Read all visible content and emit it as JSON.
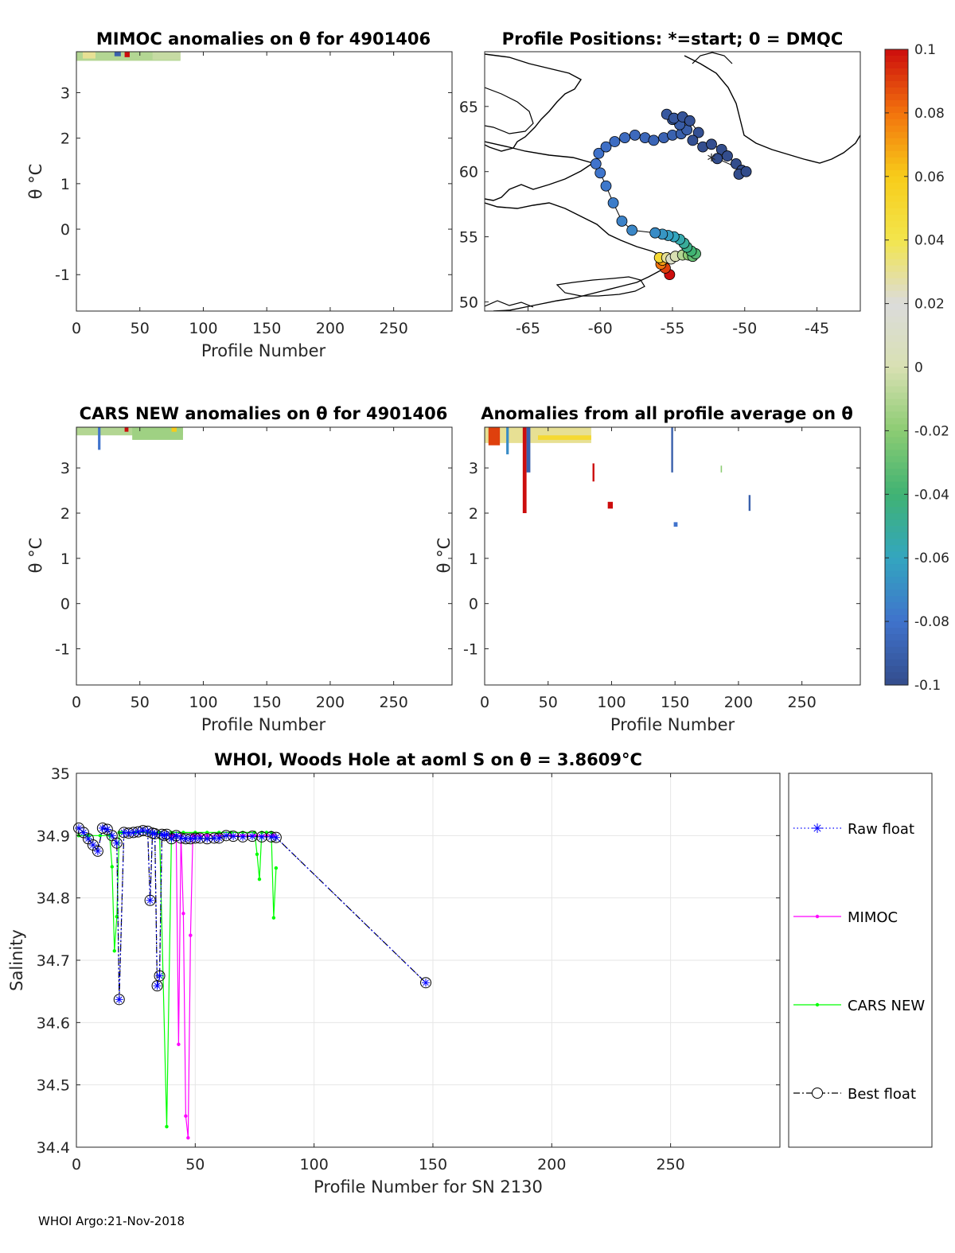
{
  "footer": "WHOI Argo:21-Nov-2018",
  "colors": {
    "raw_float": "#0000ff",
    "mimoc": "#ff00ff",
    "cars_new": "#00ff00",
    "best_float": "#000000",
    "grid": "#e6e6e6",
    "coast": "#000000"
  },
  "chart_data": [
    {
      "id": "mimoc",
      "type": "heatmap",
      "title": "MIMOC anomalies on θ  for 4901406",
      "xlabel": "Profile Number",
      "ylabel": "θ °C",
      "xlim": [
        0,
        296
      ],
      "ylim": [
        -1.8,
        3.9
      ],
      "xticks": [
        0,
        50,
        100,
        150,
        200,
        250
      ],
      "yticks": [
        -1,
        0,
        1,
        2,
        3
      ],
      "patches": [
        {
          "x0": 0,
          "x1": 82,
          "y0": 3.7,
          "y1": 3.9,
          "value": -0.01
        },
        {
          "x0": 5,
          "x1": 15,
          "y0": 3.75,
          "y1": 3.9,
          "value": 0.03
        },
        {
          "x0": 30,
          "x1": 35,
          "y0": 3.8,
          "y1": 3.9,
          "value": -0.09
        },
        {
          "x0": 38,
          "x1": 42,
          "y0": 3.78,
          "y1": 3.9,
          "value": 0.1
        },
        {
          "x0": 60,
          "x1": 82,
          "y0": 3.72,
          "y1": 3.9,
          "value": -0.005
        }
      ]
    },
    {
      "id": "positions",
      "type": "scatter",
      "title": "Profile Positions: *=start; 0 = DMQC",
      "xlim": [
        -68,
        -42
      ],
      "ylim": [
        49.3,
        69.2
      ],
      "xticks": [
        -65,
        -60,
        -55,
        -50,
        -45
      ],
      "yticks": [
        50,
        55,
        60,
        65
      ],
      "start": {
        "lon": -52.3,
        "lat": 60.8
      },
      "points": [
        [
          -55.2,
          52.1,
          0.1
        ],
        [
          -55.5,
          52.6,
          0.09
        ],
        [
          -55.8,
          52.9,
          0.08
        ],
        [
          -55.7,
          53.2,
          0.07
        ],
        [
          -55.9,
          53.4,
          0.05
        ],
        [
          -55.4,
          53.4,
          0.03
        ],
        [
          -55.1,
          53.3,
          0.01
        ],
        [
          -54.8,
          53.5,
          0.0
        ],
        [
          -54.3,
          53.6,
          -0.01
        ],
        [
          -53.9,
          53.6,
          -0.02
        ],
        [
          -53.6,
          53.5,
          -0.03
        ],
        [
          -53.4,
          53.7,
          -0.035
        ],
        [
          -53.7,
          53.9,
          -0.04
        ],
        [
          -54.0,
          54.2,
          -0.045
        ],
        [
          -54.2,
          54.5,
          -0.05
        ],
        [
          -54.5,
          54.8,
          -0.055
        ],
        [
          -54.9,
          55.0,
          -0.06
        ],
        [
          -55.3,
          55.1,
          -0.063
        ],
        [
          -55.7,
          55.2,
          -0.066
        ],
        [
          -56.2,
          55.3,
          -0.07
        ],
        [
          -57.8,
          55.5,
          -0.072
        ],
        [
          -58.5,
          56.2,
          -0.074
        ],
        [
          -59.1,
          57.6,
          -0.076
        ],
        [
          -59.6,
          58.9,
          -0.078
        ],
        [
          -60.0,
          59.9,
          -0.079
        ],
        [
          -60.3,
          60.6,
          -0.08
        ],
        [
          -60.1,
          61.4,
          -0.081
        ],
        [
          -59.6,
          61.9,
          -0.082
        ],
        [
          -59.0,
          62.3,
          -0.083
        ],
        [
          -58.3,
          62.6,
          -0.084
        ],
        [
          -57.6,
          62.8,
          -0.085
        ],
        [
          -56.9,
          62.6,
          -0.086
        ],
        [
          -56.3,
          62.4,
          -0.087
        ],
        [
          -55.6,
          62.6,
          -0.088
        ],
        [
          -55.0,
          62.8,
          -0.089
        ],
        [
          -54.4,
          62.9,
          -0.09
        ],
        [
          -54.0,
          63.2,
          -0.091
        ],
        [
          -54.5,
          63.6,
          -0.092
        ],
        [
          -55.0,
          64.0,
          -0.093
        ],
        [
          -55.4,
          64.4,
          -0.094
        ],
        [
          -54.9,
          64.1,
          -0.095
        ],
        [
          -54.3,
          64.2,
          -0.096
        ],
        [
          -53.8,
          63.9,
          -0.097
        ],
        [
          -53.2,
          63.0,
          -0.098
        ],
        [
          -53.6,
          62.4,
          -0.098
        ],
        [
          -52.9,
          61.9,
          -0.099
        ],
        [
          -52.3,
          62.1,
          -0.099
        ],
        [
          -51.6,
          61.7,
          -0.1
        ],
        [
          -51.2,
          61.2,
          -0.1
        ],
        [
          -50.6,
          60.6,
          -0.1
        ],
        [
          -50.2,
          60.1,
          -0.1
        ],
        [
          -50.4,
          59.8,
          -0.1
        ],
        [
          -49.9,
          60.0,
          -0.1
        ],
        [
          -51.9,
          61.0,
          -0.1
        ]
      ]
    },
    {
      "id": "cars",
      "type": "heatmap",
      "title": "CARS NEW anomalies on θ for 4901406",
      "xlabel": "Profile Number",
      "ylabel": "θ °C",
      "xlim": [
        0,
        296
      ],
      "ylim": [
        -1.8,
        3.9
      ],
      "xticks": [
        0,
        50,
        100,
        150,
        200,
        250
      ],
      "yticks": [
        -1,
        0,
        1,
        2,
        3
      ],
      "patches": [
        {
          "x0": 0,
          "x1": 84,
          "y0": 3.72,
          "y1": 3.9,
          "value": -0.01
        },
        {
          "x0": 44,
          "x1": 84,
          "y0": 3.62,
          "y1": 3.9,
          "value": -0.015
        },
        {
          "x0": 38,
          "x1": 41,
          "y0": 3.8,
          "y1": 3.9,
          "value": 0.1
        },
        {
          "x0": 17,
          "x1": 19,
          "y0": 3.4,
          "y1": 3.9,
          "value": -0.08
        },
        {
          "x0": 75,
          "x1": 79,
          "y0": 3.8,
          "y1": 3.9,
          "value": 0.06
        }
      ]
    },
    {
      "id": "allavg",
      "type": "heatmap",
      "title": "Anomalies from all profile average on θ",
      "xlabel": "Profile Number",
      "ylabel": "θ °C",
      "xlim": [
        0,
        296
      ],
      "ylim": [
        -1.8,
        3.9
      ],
      "xticks": [
        0,
        50,
        100,
        150,
        200,
        250
      ],
      "yticks": [
        -1,
        0,
        1,
        2,
        3
      ],
      "patches": [
        {
          "x0": 0,
          "x1": 84,
          "y0": 3.55,
          "y1": 3.9,
          "value": 0.03
        },
        {
          "x0": 42,
          "x1": 84,
          "y0": 3.62,
          "y1": 3.72,
          "value": 0.05
        },
        {
          "x0": 3,
          "x1": 12,
          "y0": 3.5,
          "y1": 3.9,
          "value": 0.09
        },
        {
          "x0": 17,
          "x1": 19,
          "y0": 3.3,
          "y1": 3.9,
          "value": -0.07
        },
        {
          "x0": 30,
          "x1": 33,
          "y0": 2.0,
          "y1": 3.9,
          "value": 0.1
        },
        {
          "x0": 33,
          "x1": 36,
          "y0": 2.9,
          "y1": 3.9,
          "value": -0.09
        },
        {
          "x0": 85,
          "x1": 86.5,
          "y0": 2.7,
          "y1": 3.1,
          "value": 0.1
        },
        {
          "x0": 97,
          "x1": 101,
          "y0": 2.1,
          "y1": 2.25,
          "value": 0.1
        },
        {
          "x0": 147,
          "x1": 148.5,
          "y0": 2.9,
          "y1": 3.9,
          "value": -0.09
        },
        {
          "x0": 149,
          "x1": 152,
          "y0": 1.7,
          "y1": 1.8,
          "value": -0.08
        },
        {
          "x0": 208,
          "x1": 209.5,
          "y0": 2.05,
          "y1": 2.4,
          "value": -0.09
        },
        {
          "x0": 186,
          "x1": 187,
          "y0": 2.9,
          "y1": 3.05,
          "value": -0.02
        }
      ]
    },
    {
      "id": "salinity",
      "type": "line",
      "title": "WHOI, Woods Hole at aoml S on θ = 3.8609°C",
      "xlabel": "Profile Number for SN 2130",
      "ylabel": "Salinity",
      "xlim": [
        0,
        296
      ],
      "ylim": [
        34.4,
        35.0
      ],
      "xticks": [
        0,
        50,
        100,
        150,
        200,
        250
      ],
      "yticks": [
        34.4,
        34.5,
        34.6,
        34.7,
        34.8,
        34.9,
        35
      ],
      "legend_position": "outside-right",
      "series": [
        {
          "name": "Raw float",
          "style": "dotted-star",
          "x": [
            1,
            3,
            5,
            7,
            9,
            11,
            13,
            15,
            17,
            18,
            20,
            22,
            24,
            26,
            28,
            30,
            31,
            32,
            33,
            34,
            35,
            36,
            37,
            38,
            40,
            42,
            44,
            46,
            48,
            50,
            52,
            55,
            58,
            60,
            63,
            66,
            70,
            74,
            78,
            82,
            84,
            147
          ],
          "y": [
            34.912,
            34.905,
            34.895,
            34.885,
            34.875,
            34.912,
            34.91,
            34.9,
            34.888,
            34.637,
            34.905,
            34.904,
            34.905,
            34.906,
            34.908,
            34.907,
            34.796,
            34.904,
            34.903,
            34.659,
            34.675,
            34.902,
            34.9,
            34.902,
            34.895,
            34.9,
            34.896,
            34.895,
            34.895,
            34.896,
            34.896,
            34.895,
            34.896,
            34.896,
            34.9,
            34.899,
            34.898,
            34.899,
            34.898,
            34.898,
            34.897,
            34.664
          ]
        },
        {
          "name": "MIMOC",
          "style": "solid-dot",
          "x": [
            40,
            41,
            42,
            43,
            44,
            45,
            46,
            47,
            48,
            49,
            50,
            52,
            55,
            60,
            65,
            70,
            75,
            80,
            83
          ],
          "y": [
            34.9,
            34.9,
            34.9,
            34.565,
            34.9,
            34.775,
            34.45,
            34.415,
            34.74,
            34.9,
            34.9,
            34.9,
            34.9,
            34.9,
            34.9,
            34.9,
            34.9,
            34.9,
            34.9
          ]
        },
        {
          "name": "CARS NEW",
          "style": "solid-dot",
          "x": [
            1,
            5,
            10,
            14,
            15,
            16,
            17,
            18,
            19,
            25,
            30,
            35,
            38,
            40,
            45,
            50,
            55,
            60,
            65,
            70,
            75,
            76,
            77,
            78,
            80,
            82,
            83,
            84
          ],
          "y": [
            34.9,
            34.9,
            34.9,
            34.9,
            34.85,
            34.715,
            34.77,
            34.905,
            34.905,
            34.905,
            34.905,
            34.905,
            34.433,
            34.905,
            34.905,
            34.905,
            34.905,
            34.905,
            34.905,
            34.905,
            34.905,
            34.87,
            34.83,
            34.905,
            34.905,
            34.905,
            34.768,
            34.848
          ]
        },
        {
          "name": "Best float",
          "style": "dashdot-circle",
          "x": [
            1,
            3,
            5,
            7,
            9,
            11,
            13,
            15,
            17,
            18,
            20,
            22,
            24,
            26,
            28,
            30,
            31,
            32,
            33,
            34,
            35,
            36,
            37,
            38,
            40,
            42,
            44,
            46,
            48,
            50,
            52,
            55,
            58,
            60,
            63,
            66,
            70,
            74,
            78,
            82,
            84,
            147
          ],
          "y": [
            34.912,
            34.905,
            34.895,
            34.885,
            34.875,
            34.912,
            34.91,
            34.9,
            34.888,
            34.637,
            34.905,
            34.904,
            34.905,
            34.906,
            34.908,
            34.907,
            34.796,
            34.904,
            34.903,
            34.659,
            34.675,
            34.902,
            34.9,
            34.902,
            34.895,
            34.9,
            34.896,
            34.895,
            34.895,
            34.896,
            34.896,
            34.895,
            34.896,
            34.896,
            34.9,
            34.899,
            34.898,
            34.899,
            34.898,
            34.898,
            34.897,
            34.664
          ]
        }
      ]
    },
    {
      "id": "colorbar",
      "type": "colorbar",
      "range": [
        -0.1,
        0.1
      ],
      "tick_labels": [
        "0.1",
        "0.08",
        "0.06",
        "0.04",
        "0.02",
        "0",
        "-0.02",
        "-0.04",
        "-0.06",
        "-0.08",
        "-0.1"
      ]
    }
  ]
}
